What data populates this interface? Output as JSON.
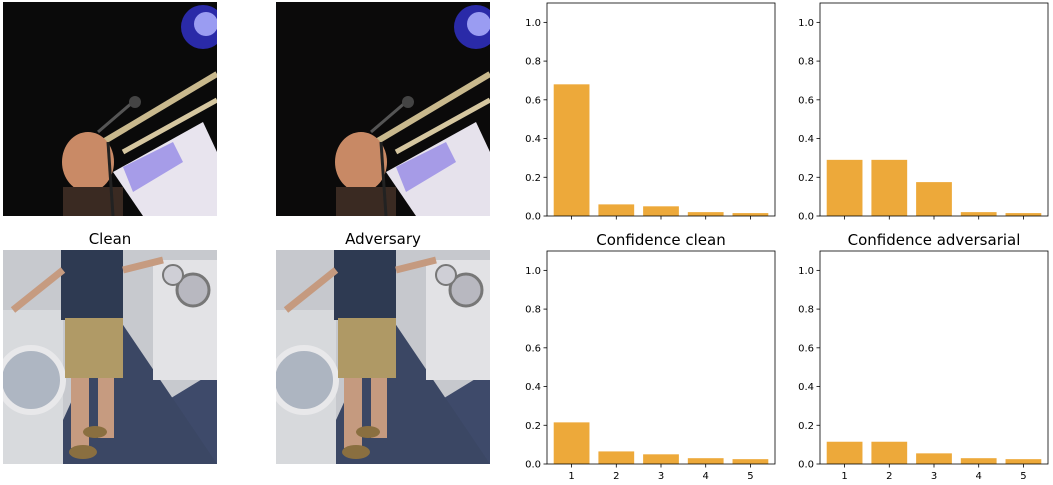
{
  "columns": {
    "clean_title": "Clean",
    "adversary_title": "Adversary",
    "confidence_clean_title": "Confidence clean",
    "confidence_adversarial_title": "Confidence adversarial"
  },
  "images": [
    {
      "row": 1,
      "content": "musician-with-microphone-and-trombone"
    },
    {
      "row": 2,
      "content": "man-in-laundromat-with-washing-machines"
    }
  ],
  "colors": {
    "bar": "#eda93a",
    "axis": "#000000"
  },
  "chart_data": [
    {
      "type": "bar",
      "row": 1,
      "panel": "clean",
      "categories": [
        "1",
        "2",
        "3",
        "4",
        "5"
      ],
      "values": [
        0.68,
        0.06,
        0.05,
        0.02,
        0.015
      ],
      "ylim": [
        0,
        1.1
      ],
      "yticks": [
        "0.0",
        "0.2",
        "0.4",
        "0.6",
        "0.8",
        "1.0"
      ],
      "show_xtick_labels": false,
      "title": ""
    },
    {
      "type": "bar",
      "row": 1,
      "panel": "adversarial",
      "categories": [
        "1",
        "2",
        "3",
        "4",
        "5"
      ],
      "values": [
        0.29,
        0.29,
        0.175,
        0.02,
        0.015
      ],
      "ylim": [
        0,
        1.1
      ],
      "yticks": [
        "0.0",
        "0.2",
        "0.4",
        "0.6",
        "0.8",
        "1.0"
      ],
      "show_xtick_labels": false,
      "title": ""
    },
    {
      "type": "bar",
      "row": 2,
      "panel": "clean",
      "categories": [
        "1",
        "2",
        "3",
        "4",
        "5"
      ],
      "values": [
        0.215,
        0.065,
        0.05,
        0.03,
        0.025
      ],
      "ylim": [
        0,
        1.1
      ],
      "yticks": [
        "0.0",
        "0.2",
        "0.4",
        "0.6",
        "0.8",
        "1.0"
      ],
      "show_xtick_labels": true,
      "title": "Confidence clean"
    },
    {
      "type": "bar",
      "row": 2,
      "panel": "adversarial",
      "categories": [
        "1",
        "2",
        "3",
        "4",
        "5"
      ],
      "values": [
        0.115,
        0.115,
        0.055,
        0.03,
        0.025
      ],
      "ylim": [
        0,
        1.1
      ],
      "yticks": [
        "0.0",
        "0.2",
        "0.4",
        "0.6",
        "0.8",
        "1.0"
      ],
      "show_xtick_labels": true,
      "title": "Confidence adversarial"
    }
  ]
}
